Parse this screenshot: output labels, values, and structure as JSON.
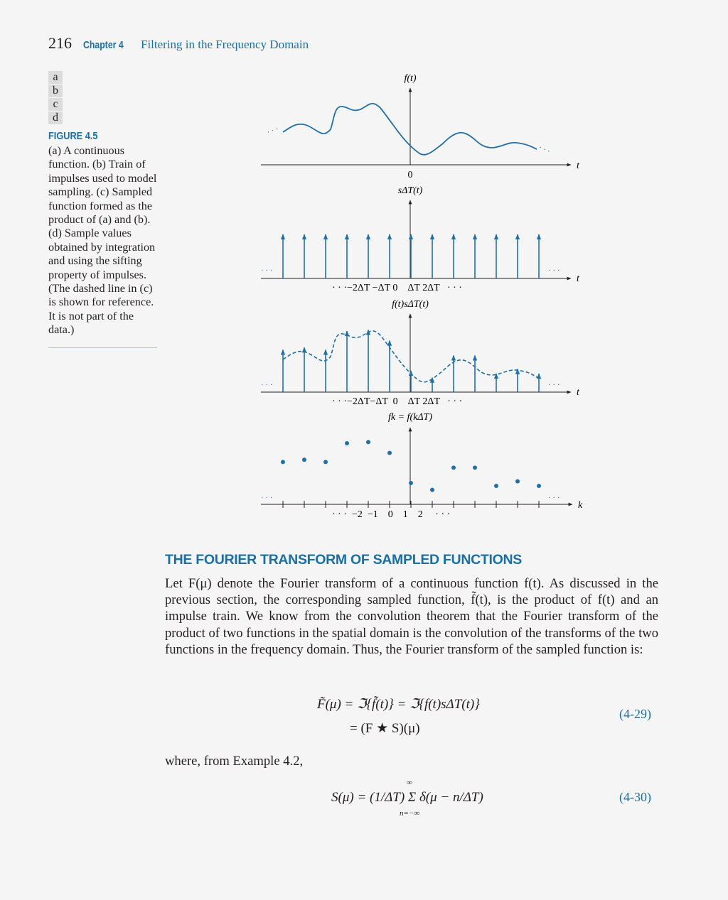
{
  "header": {
    "page_number": "216",
    "chapter": "Chapter 4",
    "title": "Filtering in the Frequency Domain"
  },
  "figure": {
    "panels": [
      "a",
      "b",
      "c",
      "d"
    ],
    "label": "FIGURE 4.5",
    "caption": "(a) A continuous function. (b) Train of impulses used to model sampling. (c) Sampled function formed as the product of (a) and (b). (d) Sample values obtained by integration and using the sifting property of impulses. (The dashed line in (c) is shown for reference. It is not part of the data.)",
    "panel_a": {
      "ylabel": "f(t)",
      "xlabel": "t",
      "origin": "0",
      "dots": "· · ·"
    },
    "panel_b": {
      "ylabel": "sΔT(t)",
      "xlabel": "t",
      "ticks": "· · ·−2ΔT −ΔT 0    ΔT 2ΔT   · · ·",
      "dots": "· · ·"
    },
    "panel_c": {
      "ylabel": "f(t)sΔT(t)",
      "xlabel": "t",
      "ticks": "· · ·−2ΔT−ΔT  0    ΔT 2ΔT   · · ·",
      "dots": "· · ·"
    },
    "panel_d": {
      "ylabel": "fk = f(kΔT)",
      "xlabel": "k",
      "ticks": "· · ·  −2  −1    0    1    2     · · ·",
      "dots": "· · ·"
    },
    "sample_values": [
      0.62,
      0.66,
      0.62,
      0.95,
      0.97,
      0.78,
      0.25,
      0.13,
      0.52,
      0.52,
      0.2,
      0.28,
      0.2
    ]
  },
  "section": {
    "heading": "THE FOURIER TRANSFORM OF SAMPLED FUNCTIONS"
  },
  "body": {
    "paragraph": "Let F(μ) denote the Fourier transform of a continuous function f(t). As discussed in the previous section, the corresponding sampled function, f̃(t), is the product of f(t) and an impulse train. We know from the convolution theorem that the Fourier transform of the product of two functions in the spatial domain is the convolution of the transforms of the two functions in the frequency domain. Thus, the Fourier transform of the sampled function is:",
    "where_text": "where, from Example 4.2,"
  },
  "equations": {
    "eq_4_29_line1": "F̃(μ) = ℑ{f̃(t)} = ℑ{f(t)sΔT(t)}",
    "eq_4_29_line2": "= (F ★ S)(μ)",
    "eq_4_29_number": "(4-29)",
    "eq_4_30": "S(μ) = (1/ΔT) Σ δ(μ − n/ΔT)",
    "eq_4_30_sum_top": "∞",
    "eq_4_30_sum_bottom": "n=−∞",
    "eq_4_30_number": "(4-30)"
  },
  "colors": {
    "accent": "#1a6fa5",
    "curve": "#1f6fa8",
    "text": "#231f20"
  }
}
